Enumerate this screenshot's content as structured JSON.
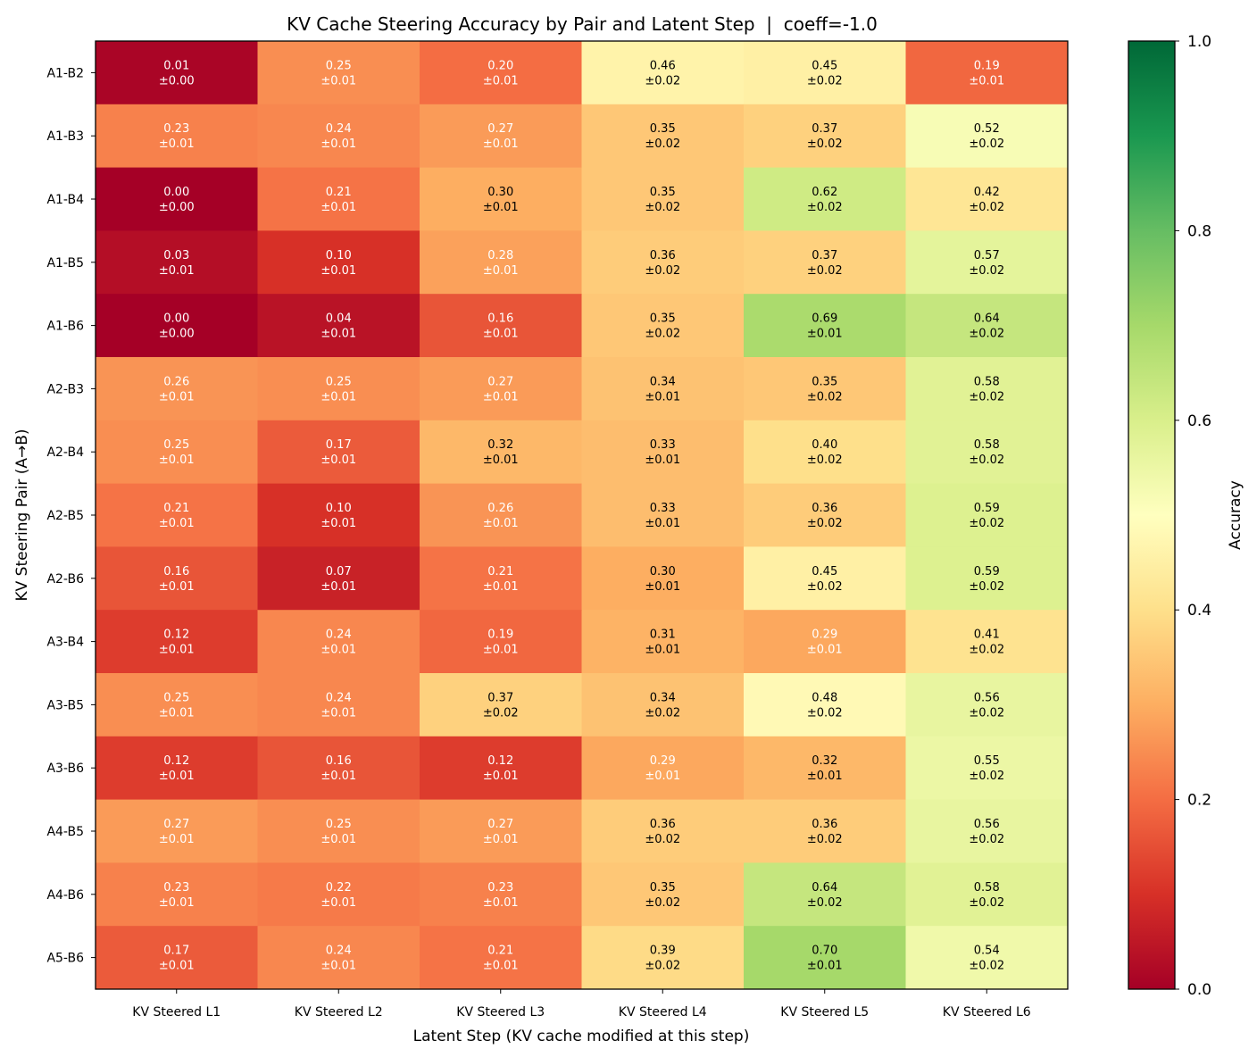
{
  "chart_data": {
    "type": "heatmap",
    "title": "KV Cache Steering Accuracy by Pair and Latent Step  |  coeff=-1.0",
    "xlabel": "Latent Step (KV cache modified at this step)",
    "ylabel": "KV Steering Pair (A→B)",
    "x_categories": [
      "KV Steered L1",
      "KV Steered L2",
      "KV Steered L3",
      "KV Steered L4",
      "KV Steered L5",
      "KV Steered L6"
    ],
    "y_categories": [
      "A1-B2",
      "A1-B3",
      "A1-B4",
      "A1-B5",
      "A1-B6",
      "A2-B3",
      "A2-B4",
      "A2-B5",
      "A2-B6",
      "A3-B4",
      "A3-B5",
      "A3-B6",
      "A4-B5",
      "A4-B6",
      "A5-B6"
    ],
    "values": [
      [
        0.01,
        0.25,
        0.2,
        0.46,
        0.45,
        0.19
      ],
      [
        0.23,
        0.24,
        0.27,
        0.35,
        0.37,
        0.52
      ],
      [
        0.0,
        0.21,
        0.3,
        0.35,
        0.62,
        0.42
      ],
      [
        0.03,
        0.1,
        0.28,
        0.36,
        0.37,
        0.57
      ],
      [
        0.0,
        0.04,
        0.16,
        0.35,
        0.69,
        0.64
      ],
      [
        0.26,
        0.25,
        0.27,
        0.34,
        0.35,
        0.58
      ],
      [
        0.25,
        0.17,
        0.32,
        0.33,
        0.4,
        0.58
      ],
      [
        0.21,
        0.1,
        0.26,
        0.33,
        0.36,
        0.59
      ],
      [
        0.16,
        0.07,
        0.21,
        0.3,
        0.45,
        0.59
      ],
      [
        0.12,
        0.24,
        0.19,
        0.31,
        0.29,
        0.41
      ],
      [
        0.25,
        0.24,
        0.37,
        0.34,
        0.48,
        0.56
      ],
      [
        0.12,
        0.16,
        0.12,
        0.29,
        0.32,
        0.55
      ],
      [
        0.27,
        0.25,
        0.27,
        0.36,
        0.36,
        0.56
      ],
      [
        0.23,
        0.22,
        0.23,
        0.35,
        0.64,
        0.58
      ],
      [
        0.17,
        0.24,
        0.21,
        0.39,
        0.7,
        0.54
      ]
    ],
    "errors": [
      [
        0.0,
        0.01,
        0.01,
        0.02,
        0.02,
        0.01
      ],
      [
        0.01,
        0.01,
        0.01,
        0.02,
        0.02,
        0.02
      ],
      [
        0.0,
        0.01,
        0.01,
        0.02,
        0.02,
        0.02
      ],
      [
        0.01,
        0.01,
        0.01,
        0.02,
        0.02,
        0.02
      ],
      [
        0.0,
        0.01,
        0.01,
        0.02,
        0.01,
        0.02
      ],
      [
        0.01,
        0.01,
        0.01,
        0.01,
        0.02,
        0.02
      ],
      [
        0.01,
        0.01,
        0.01,
        0.01,
        0.02,
        0.02
      ],
      [
        0.01,
        0.01,
        0.01,
        0.01,
        0.02,
        0.02
      ],
      [
        0.01,
        0.01,
        0.01,
        0.01,
        0.02,
        0.02
      ],
      [
        0.01,
        0.01,
        0.01,
        0.01,
        0.01,
        0.02
      ],
      [
        0.01,
        0.01,
        0.02,
        0.02,
        0.02,
        0.02
      ],
      [
        0.01,
        0.01,
        0.01,
        0.01,
        0.01,
        0.02
      ],
      [
        0.01,
        0.01,
        0.01,
        0.02,
        0.02,
        0.02
      ],
      [
        0.01,
        0.01,
        0.01,
        0.02,
        0.02,
        0.02
      ],
      [
        0.01,
        0.01,
        0.01,
        0.02,
        0.01,
        0.02
      ]
    ],
    "value_range": [
      0.0,
      1.0
    ],
    "colormap": "RdYlGn",
    "text_color_threshold": 0.3,
    "colorbar": {
      "label": "Accuracy",
      "ticks": [
        "0.0",
        "0.2",
        "0.4",
        "0.6",
        "0.8",
        "1.0"
      ],
      "tick_values": [
        0.0,
        0.2,
        0.4,
        0.6,
        0.8,
        1.0
      ],
      "placement": "right"
    },
    "grid": false
  }
}
